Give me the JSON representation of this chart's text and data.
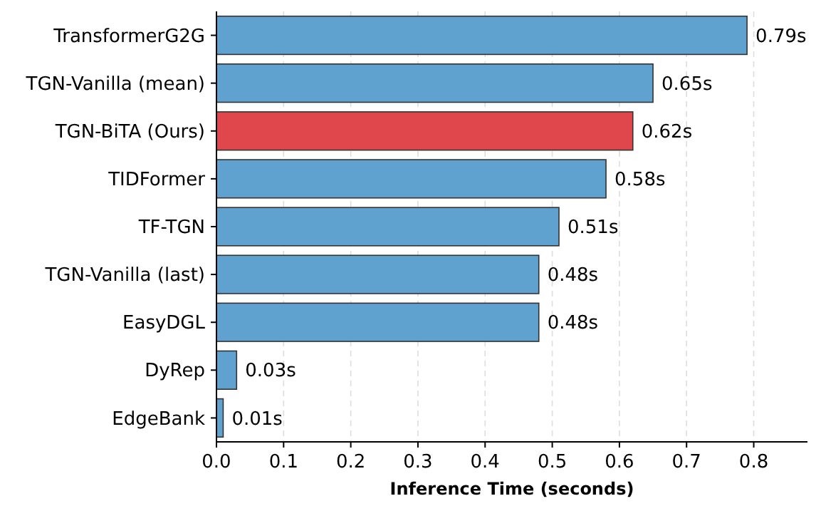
{
  "chart_data": {
    "type": "bar",
    "orientation": "horizontal",
    "xlabel": "Inference Time (seconds)",
    "categories": [
      "TransformerG2G",
      "TGN-Vanilla (mean)",
      "TGN-BiTA (Ours)",
      "TIDFormer",
      "TF-TGN",
      "TGN-Vanilla (last)",
      "EasyDGL",
      "DyRep",
      "EdgeBank"
    ],
    "values": [
      0.79,
      0.65,
      0.62,
      0.58,
      0.51,
      0.48,
      0.48,
      0.03,
      0.01
    ],
    "value_labels": [
      "0.79s",
      "0.65s",
      "0.62s",
      "0.58s",
      "0.51s",
      "0.48s",
      "0.48s",
      "0.03s",
      "0.01s"
    ],
    "colors": [
      "#5fa2cf",
      "#5fa2cf",
      "#e0474c",
      "#5fa2cf",
      "#5fa2cf",
      "#5fa2cf",
      "#5fa2cf",
      "#5fa2cf",
      "#5fa2cf"
    ],
    "xlim": [
      0,
      0.88
    ],
    "xticks": [
      {
        "value": 0,
        "label": "0.0"
      },
      0.1,
      0.2,
      0.3,
      0.4,
      0.5,
      0.6,
      0.7,
      0.8
    ],
    "grid": "x"
  }
}
